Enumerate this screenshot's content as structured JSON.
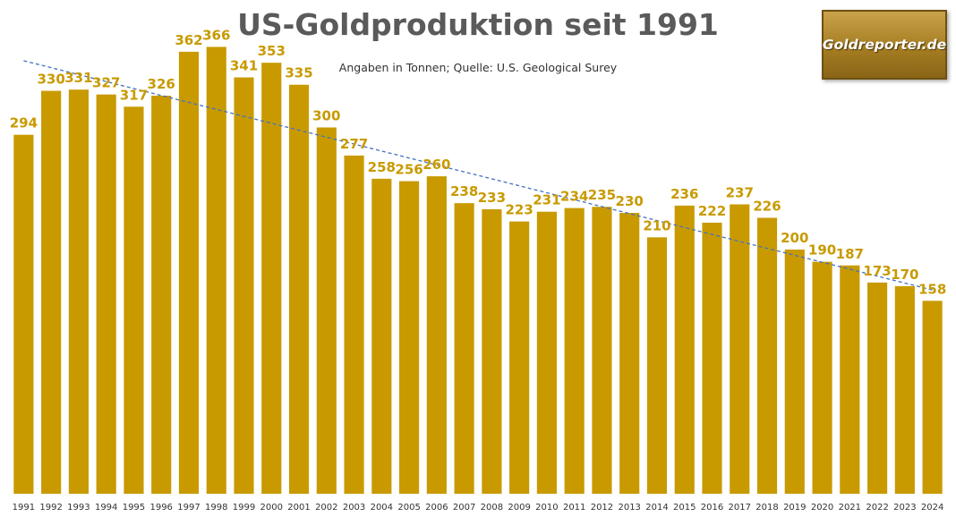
{
  "chart_data": {
    "type": "bar",
    "title": "US-Goldproduktion seit 1991",
    "subtitle": "Angaben in Tonnen; Quelle: U.S. Geological Surey",
    "categories": [
      "1991",
      "1992",
      "1993",
      "1994",
      "1995",
      "1996",
      "1997",
      "1998",
      "1999",
      "2000",
      "2001",
      "2002",
      "2003",
      "2004",
      "2005",
      "2006",
      "2007",
      "2008",
      "2009",
      "2010",
      "2011",
      "2012",
      "2013",
      "2014",
      "2015",
      "2016",
      "2017",
      "2018",
      "2019",
      "2020",
      "2021",
      "2022",
      "2023",
      "2024"
    ],
    "values": [
      294,
      330,
      331,
      327,
      317,
      326,
      362,
      366,
      341,
      353,
      335,
      300,
      277,
      258,
      256,
      260,
      238,
      233,
      223,
      231,
      234,
      235,
      230,
      210,
      236,
      222,
      237,
      226,
      200,
      190,
      187,
      173,
      170,
      158
    ],
    "ylim": [
      0,
      400
    ],
    "grid": false,
    "legend": "none",
    "data_labels": true,
    "trendline": "linear",
    "colors": {
      "bar": "#c89a00",
      "label": "#c89a00",
      "trend": "#4472c4",
      "tick": "#333333"
    }
  },
  "logo": {
    "text": "Goldreporter.de"
  }
}
